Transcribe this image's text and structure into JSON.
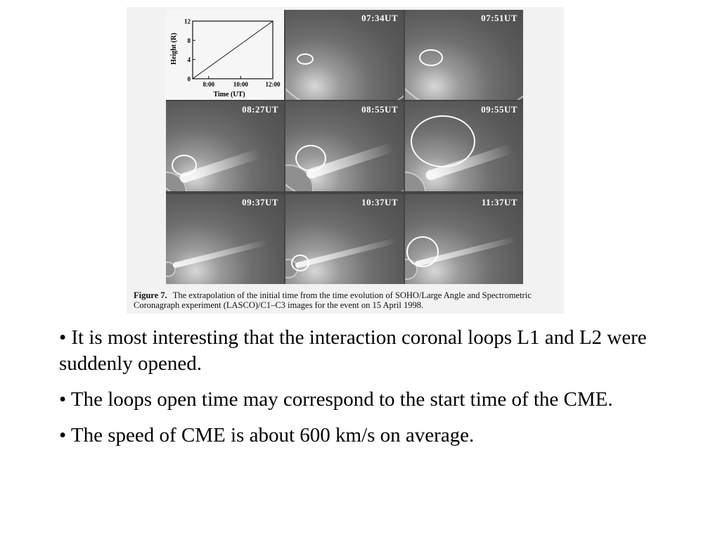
{
  "figure": {
    "graph": {
      "ylabel": "Height (R)",
      "xlabel": "Time (UT)",
      "y_ticks": [
        "12",
        "8",
        "4",
        "0"
      ],
      "x_ticks": [
        "8:00",
        "10:00",
        "12:00"
      ]
    },
    "panels": [
      {
        "time": "07:34UT"
      },
      {
        "time": "07:51UT"
      },
      {
        "time": "08:27UT"
      },
      {
        "time": "08:55UT"
      },
      {
        "time": "09:55UT"
      },
      {
        "time": "09:37UT"
      },
      {
        "time": "10:37UT"
      },
      {
        "time": "11:37UT"
      }
    ],
    "caption_label": "Figure 7.",
    "caption_text": "The extrapolation of the initial time from the time evolution of SOHO/Large Angle and Spectrometric Coronagraph experiment (LASCO)/C1–C3 images for the event on 15 April 1998."
  },
  "bullets": [
    "• It is most interesting that the interaction coronal loops L1 and L2 were suddenly opened.",
    "• The loops open time may correspond to the start time of the CME.",
    "• The speed of CME is about 600 km/s on average."
  ],
  "chart_data": {
    "type": "line",
    "xlabel": "Time (UT)",
    "ylabel": "Height (R)",
    "x_ticks": [
      "8:00",
      "10:00",
      "12:00"
    ],
    "y_ticks": [
      0,
      4,
      8,
      12
    ],
    "xlim": [
      "7:00",
      "12:00"
    ],
    "ylim": [
      0,
      12
    ],
    "series": [
      {
        "x": [
          "7:00",
          "12:00"
        ],
        "y": [
          0,
          12
        ]
      }
    ]
  }
}
